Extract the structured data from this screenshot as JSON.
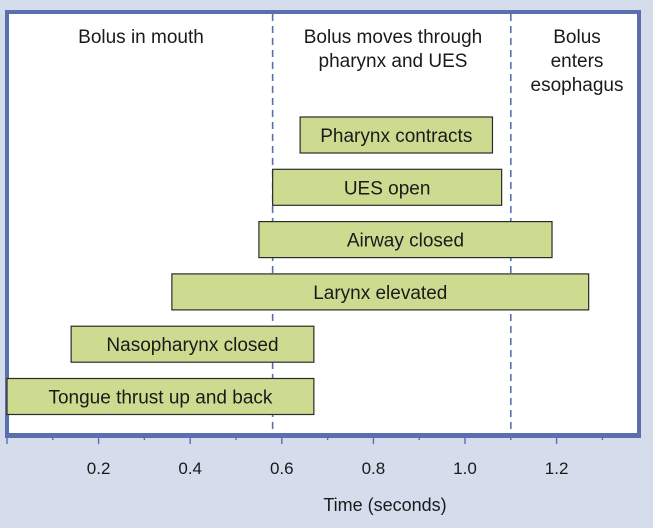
{
  "chart_data": {
    "type": "bar",
    "orientation": "horizontal",
    "xlabel": "Time (seconds)",
    "xlim": [
      0,
      1.37
    ],
    "xticks": [
      0.2,
      0.4,
      0.6,
      0.8,
      1.0,
      1.2
    ],
    "xtick_labels": [
      "0.2",
      "0.4",
      "0.6",
      "0.8",
      "1.0",
      "1.2"
    ],
    "grid": false,
    "phase_boundaries": [
      0.58,
      1.1
    ],
    "phases": [
      {
        "lines": [
          "Bolus in mouth"
        ],
        "start": 0,
        "end": 0.58
      },
      {
        "lines": [
          "Bolus moves through",
          "pharynx and UES"
        ],
        "start": 0.58,
        "end": 1.1
      },
      {
        "lines": [
          "Bolus",
          "enters",
          "esophagus"
        ],
        "start": 1.1,
        "end": 1.37
      }
    ],
    "bars": [
      {
        "label": "Pharynx contracts",
        "start": 0.64,
        "end": 1.06
      },
      {
        "label": "UES open",
        "start": 0.58,
        "end": 1.08
      },
      {
        "label": "Airway closed",
        "start": 0.55,
        "end": 1.19
      },
      {
        "label": "Larynx elevated",
        "start": 0.36,
        "end": 1.27
      },
      {
        "label": "Nasopharynx closed",
        "start": 0.14,
        "end": 0.67
      },
      {
        "label": "Tongue thrust up and back",
        "start": 0.0,
        "end": 0.67
      }
    ]
  },
  "colors": {
    "background": "#d5dcec",
    "plot_background": "#ffffff",
    "frame": "#5b6fae",
    "bar_fill": "#cddb91",
    "bar_stroke": "#2b2b2b",
    "phase_line": "#5b6fae",
    "axis": "#5b6fae"
  }
}
